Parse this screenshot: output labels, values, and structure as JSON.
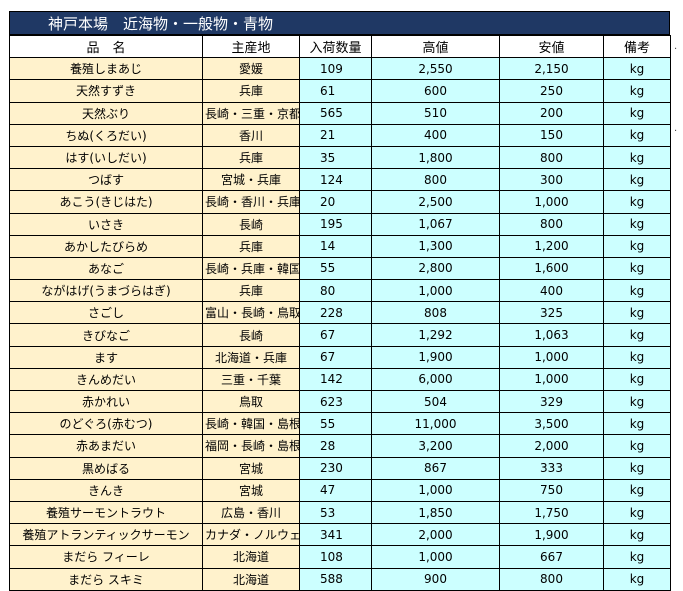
{
  "title": "神戸本場　近海物・一般物・青物",
  "headers": {
    "name": "品　名",
    "origin": "主産地",
    "qty": "入荷数量",
    "high": "高値",
    "low": "安値",
    "note": "備考"
  },
  "rows": [
    {
      "name": "養殖しまあじ",
      "origin": "愛媛",
      "qty": "109",
      "high": "2,550",
      "low": "2,150",
      "note": "kg"
    },
    {
      "name": "天然すずき",
      "origin": "兵庫",
      "qty": "61",
      "high": "600",
      "low": "250",
      "note": "kg"
    },
    {
      "name": "天然ぶり",
      "origin": "長崎・三重・京都",
      "qty": "565",
      "high": "510",
      "low": "200",
      "note": "kg"
    },
    {
      "name": "ちぬ(くろだい)",
      "origin": "香川",
      "qty": "21",
      "high": "400",
      "low": "150",
      "note": "kg"
    },
    {
      "name": "はす(いしだい)",
      "origin": "兵庫",
      "qty": "35",
      "high": "1,800",
      "low": "800",
      "note": "kg"
    },
    {
      "name": "つばす",
      "origin": "宮城・兵庫",
      "qty": "124",
      "high": "800",
      "low": "300",
      "note": "kg"
    },
    {
      "name": "あこう(きじはた)",
      "origin": "長崎・香川・兵庫他",
      "qty": "20",
      "high": "2,500",
      "low": "1,000",
      "note": "kg"
    },
    {
      "name": "いさき",
      "origin": "長崎",
      "qty": "195",
      "high": "1,067",
      "low": "800",
      "note": "kg"
    },
    {
      "name": "あかしたびらめ",
      "origin": "兵庫",
      "qty": "14",
      "high": "1,300",
      "low": "1,200",
      "note": "kg"
    },
    {
      "name": "あなご",
      "origin": "長崎・兵庫・韓国",
      "qty": "55",
      "high": "2,800",
      "low": "1,600",
      "note": "kg"
    },
    {
      "name": "ながはげ(うまづらはぎ)",
      "origin": "兵庫",
      "qty": "80",
      "high": "1,000",
      "low": "400",
      "note": "kg"
    },
    {
      "name": "さごし",
      "origin": "富山・長崎・鳥取他",
      "qty": "228",
      "high": "808",
      "low": "325",
      "note": "kg"
    },
    {
      "name": "きびなご",
      "origin": "長崎",
      "qty": "67",
      "high": "1,292",
      "low": "1,063",
      "note": "kg"
    },
    {
      "name": "ます",
      "origin": "北海道・兵庫",
      "qty": "67",
      "high": "1,900",
      "low": "1,000",
      "note": "kg"
    },
    {
      "name": "きんめだい",
      "origin": "三重・千葉",
      "qty": "142",
      "high": "6,000",
      "low": "1,000",
      "note": "kg"
    },
    {
      "name": "赤かれい",
      "origin": "鳥取",
      "qty": "623",
      "high": "504",
      "low": "329",
      "note": "kg"
    },
    {
      "name": "のどぐろ(赤むつ)",
      "origin": "長崎・韓国・島根",
      "qty": "55",
      "high": "11,000",
      "low": "3,500",
      "note": "kg"
    },
    {
      "name": "赤あまだい",
      "origin": "福岡・長崎・島根",
      "qty": "28",
      "high": "3,200",
      "low": "2,000",
      "note": "kg"
    },
    {
      "name": "黒めばる",
      "origin": "宮城",
      "qty": "230",
      "high": "867",
      "low": "333",
      "note": "kg"
    },
    {
      "name": "きんき",
      "origin": "宮城",
      "qty": "47",
      "high": "1,000",
      "low": "750",
      "note": "kg"
    },
    {
      "name": "養殖サーモントラウト",
      "origin": "広島・香川",
      "qty": "53",
      "high": "1,850",
      "low": "1,750",
      "note": "kg"
    },
    {
      "name": "養殖アトランティックサーモン",
      "origin": "カナダ・ノルウェー",
      "qty": "341",
      "high": "2,000",
      "low": "1,900",
      "note": "kg"
    },
    {
      "name": "まだら フィーレ",
      "origin": "北海道",
      "qty": "108",
      "high": "1,000",
      "low": "667",
      "note": "kg"
    },
    {
      "name": "まだら スキミ",
      "origin": "北海道",
      "qty": "588",
      "high": "900",
      "low": "800",
      "note": "kg"
    }
  ]
}
